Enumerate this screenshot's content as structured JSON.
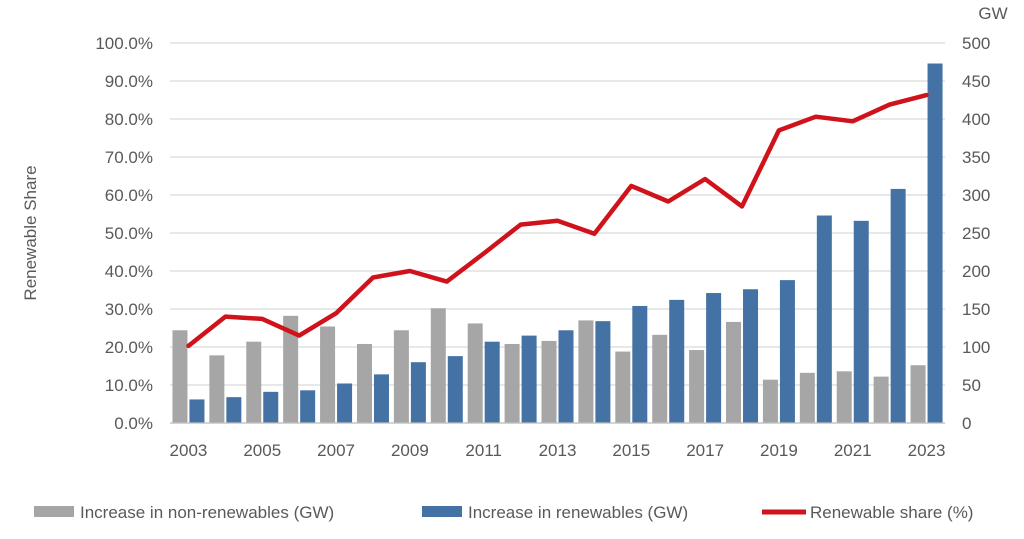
{
  "chart_data": {
    "type": "bar",
    "title": "",
    "categories": [
      "2003",
      "2004",
      "2005",
      "2006",
      "2007",
      "2008",
      "2009",
      "2010",
      "2011",
      "2012",
      "2013",
      "2014",
      "2015",
      "2016",
      "2017",
      "2018",
      "2019",
      "2020",
      "2021",
      "2022",
      "2023"
    ],
    "x_tick_labels": [
      "2003",
      "2005",
      "2007",
      "2009",
      "2011",
      "2013",
      "2015",
      "2017",
      "2019",
      "2021",
      "2023"
    ],
    "series": [
      {
        "name": "Increase in non-renewables (GW)",
        "type": "bar",
        "axis": "right",
        "color": "#a6a6a6",
        "values": [
          122,
          89,
          107,
          141,
          127,
          104,
          122,
          151,
          131,
          104,
          108,
          135,
          94,
          116,
          96,
          133,
          57,
          66,
          68,
          61,
          76
        ]
      },
      {
        "name": "Increase in renewables (GW)",
        "type": "bar",
        "axis": "right",
        "color": "#4472a4",
        "values": [
          31,
          34,
          41,
          43,
          52,
          64,
          80,
          88,
          107,
          115,
          122,
          134,
          154,
          162,
          171,
          176,
          188,
          273,
          266,
          308,
          473
        ]
      },
      {
        "name": "Renewable share (%)",
        "type": "line",
        "axis": "left",
        "color": "#d0121b",
        "values": [
          20.3,
          28.0,
          27.4,
          23.0,
          28.9,
          38.3,
          40.0,
          37.2,
          44.6,
          52.2,
          53.2,
          49.8,
          62.4,
          58.3,
          64.2,
          57.0,
          77.0,
          80.6,
          79.4,
          83.8,
          86.3
        ]
      }
    ],
    "y_left": {
      "label": "Renewable Share",
      "min": 0,
      "max": 100,
      "step": 10,
      "tick_labels": [
        "0.0%",
        "10.0%",
        "20.0%",
        "30.0%",
        "40.0%",
        "50.0%",
        "60.0%",
        "70.0%",
        "80.0%",
        "90.0%",
        "100.0%"
      ]
    },
    "y_right": {
      "label": "GW",
      "min": 0,
      "max": 500,
      "step": 50,
      "tick_labels": [
        "0",
        "50",
        "100",
        "150",
        "200",
        "250",
        "300",
        "350",
        "400",
        "450",
        "500"
      ]
    },
    "grid": true,
    "legend_placement": "bottom"
  }
}
